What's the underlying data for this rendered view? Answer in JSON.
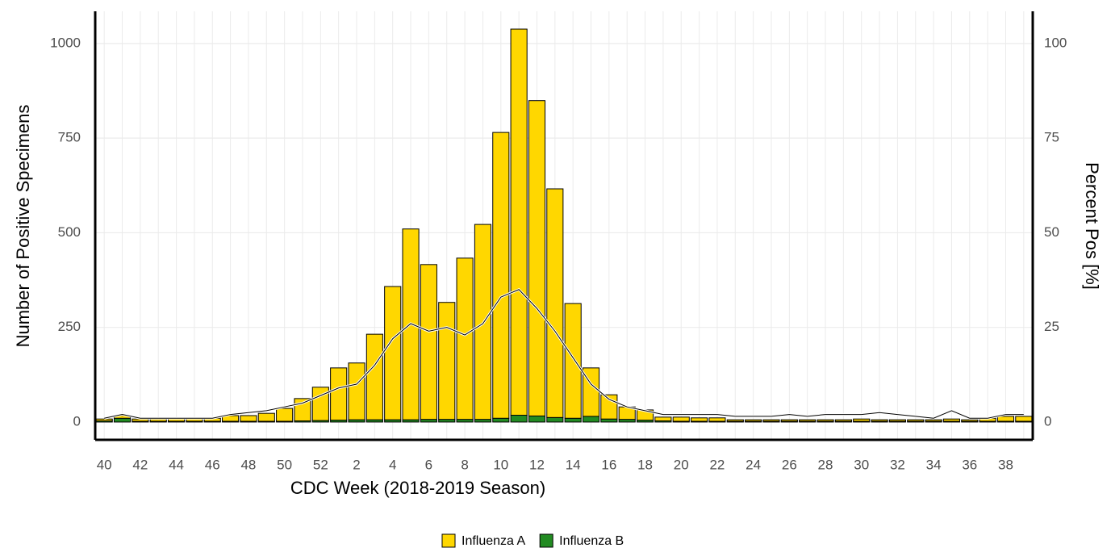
{
  "chart_data": {
    "type": "bar",
    "x_label": "CDC Week (2018-2019 Season)",
    "y_label": "Number of Positive Specimens",
    "y2_label": "Percent Pos [%]",
    "categories": [
      "40",
      null,
      "42",
      null,
      "44",
      null,
      "46",
      null,
      "48",
      null,
      "50",
      null,
      "52",
      null,
      "2",
      null,
      "4",
      null,
      "6",
      null,
      "8",
      null,
      "10",
      null,
      "12",
      null,
      "14",
      null,
      "16",
      null,
      "18",
      null,
      "20",
      null,
      "22",
      null,
      "24",
      null,
      "26",
      null,
      "28",
      null,
      "30",
      null,
      "32",
      null,
      "34",
      null,
      "36",
      null,
      "38",
      null
    ],
    "series": [
      {
        "name": "Influenza A",
        "color": "#ffd700",
        "values": [
          5,
          7,
          6,
          6,
          8,
          8,
          8,
          15,
          15,
          21,
          34,
          59,
          88,
          138,
          150,
          226,
          352,
          504,
          409,
          309,
          426,
          515,
          755,
          1020,
          833,
          604,
          303,
          128,
          64,
          33,
          27,
          10,
          11,
          9,
          9,
          4,
          4,
          4,
          4,
          4,
          4,
          4,
          6,
          4,
          4,
          4,
          4,
          6,
          4,
          8,
          13,
          13
        ]
      },
      {
        "name": "Influenza B",
        "color": "#228b22",
        "values": [
          3,
          10,
          2,
          2,
          2,
          2,
          2,
          2,
          2,
          2,
          2,
          3,
          4,
          5,
          6,
          6,
          6,
          6,
          7,
          7,
          7,
          7,
          10,
          18,
          16,
          12,
          10,
          15,
          8,
          7,
          5,
          3,
          2,
          2,
          2,
          2,
          2,
          2,
          2,
          2,
          2,
          2,
          2,
          2,
          2,
          2,
          2,
          2,
          2,
          2,
          2,
          2
        ]
      }
    ],
    "percent_positive": {
      "axis": "y2",
      "color": "#000000",
      "values": [
        1,
        2,
        1,
        1,
        1,
        1,
        1,
        2,
        2.5,
        3,
        4,
        5,
        7,
        9,
        10,
        15,
        22,
        26,
        24,
        25,
        23,
        26,
        33,
        35,
        30,
        24,
        17,
        10,
        6,
        4,
        3,
        2,
        2,
        2,
        2,
        1.5,
        1.5,
        1.5,
        2,
        1.5,
        2,
        2,
        2,
        2.5,
        2,
        1.5,
        1,
        3,
        1,
        1,
        2,
        2
      ]
    },
    "ylim": [
      -47,
      1085
    ],
    "yticks": [
      0,
      250,
      500,
      750,
      1000
    ],
    "y2lim": [
      -4.7,
      108.5
    ],
    "y2ticks": [
      0,
      25,
      50,
      75,
      100
    ],
    "grid": true,
    "legend": "bottom"
  }
}
